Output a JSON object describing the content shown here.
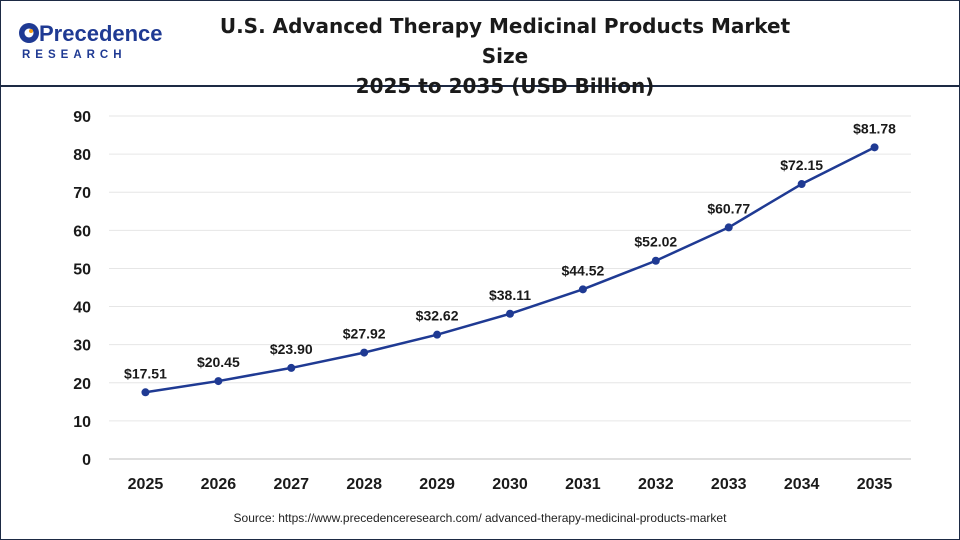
{
  "header": {
    "title_line1": "U.S. Advanced Therapy Medicinal Products Market Size",
    "title_line2": "2025 to 2035 (USD Billion)",
    "logo_top": "Precedence",
    "logo_bottom": "RESEARCH"
  },
  "source": "Source: https://www.precedenceresearch.com/ advanced-therapy-medicinal-products-market",
  "colors": {
    "line": "#1f3a93",
    "grid": "#e6e6e6",
    "brand_blue": "#1f3a93",
    "brand_orange": "#f39c12"
  },
  "chart_data": {
    "type": "line",
    "title": "U.S. Advanced Therapy Medicinal Products Market Size 2025 to 2035 (USD Billion)",
    "categories": [
      "2025",
      "2026",
      "2027",
      "2028",
      "2029",
      "2030",
      "2031",
      "2032",
      "2033",
      "2034",
      "2035"
    ],
    "values": [
      17.51,
      20.45,
      23.9,
      27.92,
      32.62,
      38.11,
      44.52,
      52.02,
      60.77,
      72.15,
      81.78
    ],
    "labels": [
      "$17.51",
      "$20.45",
      "$23.90",
      "$27.92",
      "$32.62",
      "$38.11",
      "$44.52",
      "$52.02",
      "$60.77",
      "$72.15",
      "$81.78"
    ],
    "yticks": [
      "0",
      "10",
      "20",
      "30",
      "40",
      "50",
      "60",
      "70",
      "80",
      "90"
    ],
    "ylim": [
      0,
      90
    ],
    "grid": true,
    "xlabel": "",
    "ylabel": ""
  }
}
